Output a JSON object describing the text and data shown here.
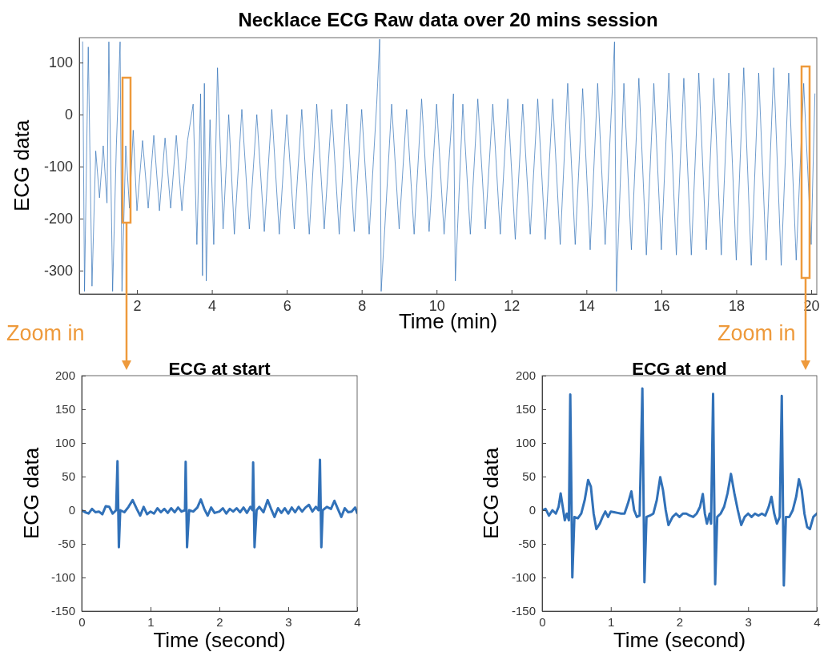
{
  "chart_data": [
    {
      "type": "line",
      "title": "Necklace ECG Raw data over 20 mins session",
      "xlabel": "Time (min)",
      "ylabel": "ECG data",
      "annotations": [
        "Zoom in",
        "Zoom in"
      ],
      "xlim": [
        0.46,
        20.15
      ],
      "ylim": [
        -345,
        148
      ],
      "xticks": [
        2,
        4,
        6,
        8,
        10,
        12,
        14,
        16,
        18,
        20
      ],
      "yticks": [
        -300,
        -200,
        -100,
        0,
        100
      ],
      "grid": false,
      "marker": "none",
      "line_style": "solid",
      "series": [
        {
          "color": "#3171b8",
          "x": [
            0.55,
            0.6,
            0.7,
            0.8,
            0.9,
            1.0,
            1.1,
            1.2,
            1.25,
            1.35,
            1.45,
            1.55,
            1.6,
            1.7,
            1.8,
            1.9,
            2.0,
            2.15,
            2.3,
            2.45,
            2.6,
            2.75,
            2.9,
            3.05,
            3.2,
            3.35,
            3.5,
            3.6,
            3.7,
            3.75,
            3.8,
            3.85,
            3.95,
            4.05,
            4.15,
            4.3,
            4.45,
            4.6,
            4.8,
            5.0,
            5.2,
            5.4,
            5.6,
            5.8,
            6.0,
            6.2,
            6.4,
            6.6,
            6.8,
            7.0,
            7.2,
            7.4,
            7.6,
            7.8,
            8.0,
            8.2,
            8.4,
            8.48,
            8.52,
            8.6,
            8.8,
            9.0,
            9.2,
            9.4,
            9.6,
            9.8,
            10.0,
            10.2,
            10.45,
            10.5,
            10.7,
            10.9,
            11.1,
            11.3,
            11.5,
            11.7,
            11.9,
            12.1,
            12.3,
            12.5,
            12.7,
            12.9,
            13.1,
            13.3,
            13.5,
            13.7,
            13.9,
            14.1,
            14.3,
            14.5,
            14.75,
            14.8,
            15.0,
            15.2,
            15.4,
            15.6,
            15.8,
            16.0,
            16.2,
            16.4,
            16.6,
            16.8,
            17.0,
            17.2,
            17.4,
            17.6,
            17.8,
            18.0,
            18.2,
            18.4,
            18.6,
            18.8,
            19.0,
            19.2,
            19.4,
            19.6,
            19.8,
            20.0,
            20.1
          ],
          "values": [
            140,
            -340,
            130,
            -330,
            -70,
            -160,
            -60,
            -170,
            140,
            -340,
            -60,
            140,
            -340,
            -60,
            -180,
            -30,
            -185,
            -50,
            -180,
            -40,
            -185,
            -45,
            -180,
            -40,
            -185,
            -50,
            20,
            -250,
            40,
            -310,
            60,
            -320,
            -10,
            -250,
            90,
            -220,
            0,
            -230,
            10,
            -220,
            0,
            -225,
            10,
            -230,
            0,
            -220,
            10,
            -230,
            20,
            -220,
            10,
            -230,
            20,
            -225,
            10,
            -230,
            20,
            145,
            -340,
            -240,
            20,
            -220,
            10,
            -230,
            30,
            -225,
            20,
            -230,
            40,
            -320,
            20,
            -230,
            30,
            -220,
            20,
            -230,
            30,
            -240,
            20,
            -230,
            30,
            -240,
            30,
            -250,
            60,
            -250,
            50,
            -260,
            60,
            -250,
            140,
            -340,
            60,
            -260,
            70,
            -270,
            60,
            -260,
            80,
            -270,
            70,
            -270,
            80,
            -260,
            70,
            -270,
            80,
            -280,
            90,
            -290,
            80,
            -280,
            90,
            -290,
            80,
            -280,
            60,
            -250,
            40
          ]
        }
      ]
    },
    {
      "type": "line",
      "title": "ECG at start",
      "xlabel": "Time (second)",
      "ylabel": "ECG data",
      "xlim": [
        0,
        4
      ],
      "ylim": [
        -150,
        200
      ],
      "xticks": [
        0,
        1,
        2,
        3,
        4
      ],
      "yticks": [
        -150,
        -100,
        -50,
        0,
        50,
        100,
        150,
        200
      ],
      "grid": false,
      "marker": "none",
      "line_style": "solid",
      "series": [
        {
          "color": "#3171b8",
          "x": [
            0,
            0.05,
            0.1,
            0.15,
            0.2,
            0.25,
            0.3,
            0.35,
            0.4,
            0.45,
            0.5,
            0.52,
            0.54,
            0.56,
            0.62,
            0.68,
            0.74,
            0.8,
            0.85,
            0.9,
            0.95,
            1.0,
            1.05,
            1.1,
            1.15,
            1.2,
            1.25,
            1.3,
            1.35,
            1.4,
            1.45,
            1.5,
            1.51,
            1.53,
            1.56,
            1.62,
            1.68,
            1.73,
            1.78,
            1.83,
            1.88,
            1.93,
            2.0,
            2.05,
            2.1,
            2.15,
            2.2,
            2.25,
            2.3,
            2.35,
            2.4,
            2.45,
            2.48,
            2.49,
            2.51,
            2.54,
            2.58,
            2.64,
            2.7,
            2.75,
            2.8,
            2.85,
            2.9,
            2.95,
            3.0,
            3.05,
            3.1,
            3.15,
            3.2,
            3.25,
            3.3,
            3.35,
            3.4,
            3.44,
            3.46,
            3.48,
            3.5,
            3.56,
            3.62,
            3.67,
            3.72,
            3.77,
            3.82,
            3.87,
            3.92,
            3.97,
            4.0
          ],
          "values": [
            0,
            -3,
            -5,
            2,
            -3,
            -2,
            -6,
            6,
            5,
            -5,
            0,
            73,
            -55,
            0,
            -3,
            5,
            15,
            2,
            -8,
            5,
            -6,
            -2,
            -5,
            3,
            -3,
            2,
            -4,
            3,
            -3,
            4,
            -2,
            0,
            72,
            -55,
            0,
            -2,
            4,
            16,
            2,
            -8,
            4,
            -4,
            -2,
            3,
            -5,
            2,
            -2,
            3,
            -3,
            4,
            -4,
            5,
            0,
            71,
            -55,
            0,
            5,
            -3,
            15,
            2,
            -10,
            3,
            -4,
            3,
            -5,
            4,
            -3,
            5,
            -2,
            4,
            8,
            -2,
            5,
            0,
            75,
            -55,
            0,
            5,
            2,
            14,
            2,
            -10,
            3,
            -3,
            -2,
            4,
            -4
          ]
        }
      ]
    },
    {
      "type": "line",
      "title": "ECG at end",
      "xlabel": "Time (second)",
      "ylabel": "ECG data",
      "xlim": [
        0,
        4
      ],
      "ylim": [
        -150,
        200
      ],
      "xticks": [
        0,
        1,
        2,
        3,
        4
      ],
      "yticks": [
        -150,
        -100,
        -50,
        0,
        50,
        100,
        150,
        200
      ],
      "grid": false,
      "marker": "none",
      "line_style": "solid",
      "series": [
        {
          "color": "#3171b8",
          "x": [
            0,
            0.05,
            0.1,
            0.15,
            0.2,
            0.24,
            0.27,
            0.3,
            0.33,
            0.36,
            0.39,
            0.41,
            0.44,
            0.47,
            0.52,
            0.57,
            0.62,
            0.67,
            0.71,
            0.75,
            0.79,
            0.84,
            0.88,
            0.92,
            0.96,
            1.0,
            1.05,
            1.1,
            1.15,
            1.2,
            1.25,
            1.3,
            1.34,
            1.38,
            1.42,
            1.46,
            1.49,
            1.52,
            1.57,
            1.62,
            1.67,
            1.72,
            1.76,
            1.8,
            1.84,
            1.9,
            1.95,
            2.0,
            2.05,
            2.1,
            2.15,
            2.2,
            2.25,
            2.3,
            2.34,
            2.37,
            2.4,
            2.44,
            2.46,
            2.49,
            2.52,
            2.55,
            2.6,
            2.65,
            2.7,
            2.75,
            2.8,
            2.85,
            2.9,
            2.95,
            3.0,
            3.05,
            3.1,
            3.15,
            3.2,
            3.25,
            3.3,
            3.34,
            3.38,
            3.42,
            3.46,
            3.49,
            3.52,
            3.55,
            3.6,
            3.65,
            3.7,
            3.74,
            3.78,
            3.82,
            3.86,
            3.9,
            3.95,
            4.0
          ],
          "values": [
            0,
            2,
            -8,
            0,
            -5,
            5,
            25,
            5,
            -15,
            -5,
            -15,
            172,
            -100,
            -10,
            -12,
            -5,
            15,
            45,
            35,
            -5,
            -28,
            -20,
            -10,
            -2,
            -10,
            -2,
            -3,
            -4,
            -5,
            -5,
            10,
            28,
            0,
            -10,
            -8,
            181,
            -107,
            -10,
            -8,
            -5,
            15,
            49,
            30,
            0,
            -22,
            -10,
            -5,
            -10,
            -5,
            -5,
            -8,
            -10,
            -5,
            5,
            24,
            -5,
            -20,
            -5,
            -20,
            173,
            -110,
            -10,
            -5,
            5,
            25,
            54,
            25,
            0,
            -22,
            -10,
            -5,
            -10,
            -5,
            -8,
            -5,
            -8,
            5,
            20,
            -5,
            -20,
            -10,
            170,
            -112,
            -10,
            -10,
            0,
            20,
            46,
            30,
            -5,
            -25,
            -28,
            -10,
            -5
          ]
        }
      ]
    }
  ]
}
